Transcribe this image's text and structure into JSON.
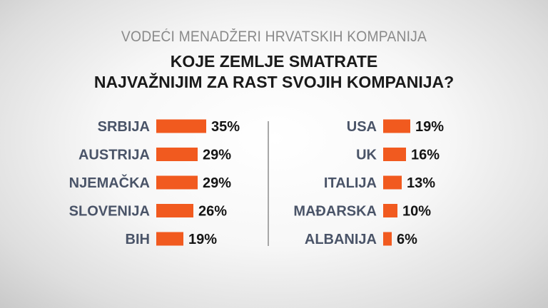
{
  "header": {
    "subtitle": "VODEĆI MENADŽERI HRVATSKIH KOMPANIJA",
    "title_line1": "KOJE ZEMLJE SMATRATE",
    "title_line2": "NAJVAŽNIJIM ZA RAST SVOJIH KOMPANIJA?"
  },
  "colors": {
    "bar": "#f15a1f",
    "label": "#4a5468",
    "value": "#151515",
    "divider": "#8c8c8c"
  },
  "chart_data": [
    {
      "type": "bar",
      "orientation": "horizontal",
      "categories": [
        "SRBIJA",
        "AUSTRIJA",
        "NJEMAČKA",
        "SLOVENIJA",
        "BIH"
      ],
      "values": [
        35,
        29,
        29,
        26,
        19
      ],
      "value_labels": [
        "35%",
        "29%",
        "29%",
        "26%",
        "19%"
      ],
      "unit": "%"
    },
    {
      "type": "bar",
      "orientation": "horizontal",
      "categories": [
        "USA",
        "UK",
        "ITALIJA",
        "MAĐARSKA",
        "ALBANIJA"
      ],
      "values": [
        19,
        16,
        13,
        10,
        6
      ],
      "value_labels": [
        "19%",
        "16%",
        "13%",
        "10%",
        "6%"
      ],
      "unit": "%"
    }
  ]
}
